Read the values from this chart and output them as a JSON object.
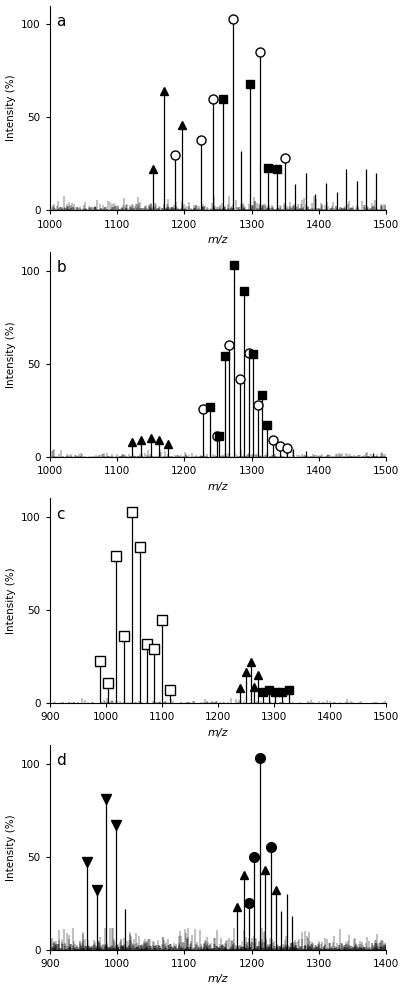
{
  "panels": [
    {
      "label": "a",
      "xlim": [
        1000,
        1500
      ],
      "ylim": [
        0,
        110
      ],
      "xticks": [
        1000,
        1100,
        1200,
        1300,
        1400,
        1500
      ],
      "peaks": [
        {
          "mz": 1154,
          "intensity": 22,
          "marker": "triangle_filled"
        },
        {
          "mz": 1170,
          "intensity": 64,
          "marker": "triangle_filled"
        },
        {
          "mz": 1186,
          "intensity": 30,
          "marker": "circle_open"
        },
        {
          "mz": 1196,
          "intensity": 46,
          "marker": "triangle_filled"
        },
        {
          "mz": 1224,
          "intensity": 38,
          "marker": "circle_open"
        },
        {
          "mz": 1242,
          "intensity": 60,
          "marker": "circle_open"
        },
        {
          "mz": 1258,
          "intensity": 60,
          "marker": "square_filled"
        },
        {
          "mz": 1272,
          "intensity": 103,
          "marker": "circle_open"
        },
        {
          "mz": 1284,
          "intensity": 32,
          "marker": null
        },
        {
          "mz": 1298,
          "intensity": 68,
          "marker": "square_filled"
        },
        {
          "mz": 1312,
          "intensity": 85,
          "marker": "circle_open"
        },
        {
          "mz": 1324,
          "intensity": 23,
          "marker": "square_filled"
        },
        {
          "mz": 1338,
          "intensity": 22,
          "marker": "square_filled"
        },
        {
          "mz": 1350,
          "intensity": 28,
          "marker": "circle_open"
        },
        {
          "mz": 1364,
          "intensity": 14,
          "marker": null
        },
        {
          "mz": 1380,
          "intensity": 20,
          "marker": null
        },
        {
          "mz": 1394,
          "intensity": 9,
          "marker": null
        },
        {
          "mz": 1410,
          "intensity": 15,
          "marker": null
        },
        {
          "mz": 1426,
          "intensity": 10,
          "marker": null
        },
        {
          "mz": 1440,
          "intensity": 22,
          "marker": null
        },
        {
          "mz": 1456,
          "intensity": 16,
          "marker": null
        },
        {
          "mz": 1470,
          "intensity": 22,
          "marker": null
        },
        {
          "mz": 1484,
          "intensity": 20,
          "marker": null
        }
      ],
      "noise_seed": 101,
      "noise_density": 600,
      "noise_max": 8,
      "noise_exp_scale": 1.5
    },
    {
      "label": "b",
      "xlim": [
        1000,
        1500
      ],
      "ylim": [
        0,
        110
      ],
      "xticks": [
        1000,
        1100,
        1200,
        1300,
        1400,
        1500
      ],
      "peaks": [
        {
          "mz": 1122,
          "intensity": 8,
          "marker": "triangle_filled"
        },
        {
          "mz": 1136,
          "intensity": 9,
          "marker": "triangle_filled"
        },
        {
          "mz": 1150,
          "intensity": 10,
          "marker": "triangle_filled"
        },
        {
          "mz": 1163,
          "intensity": 9,
          "marker": "triangle_filled"
        },
        {
          "mz": 1176,
          "intensity": 7,
          "marker": "triangle_filled"
        },
        {
          "mz": 1228,
          "intensity": 26,
          "marker": "circle_open"
        },
        {
          "mz": 1238,
          "intensity": 27,
          "marker": "square_filled"
        },
        {
          "mz": 1248,
          "intensity": 11,
          "marker": "circle_open"
        },
        {
          "mz": 1252,
          "intensity": 11,
          "marker": "square_filled"
        },
        {
          "mz": 1260,
          "intensity": 54,
          "marker": "square_filled"
        },
        {
          "mz": 1267,
          "intensity": 60,
          "marker": "circle_open"
        },
        {
          "mz": 1274,
          "intensity": 103,
          "marker": "square_filled"
        },
        {
          "mz": 1282,
          "intensity": 42,
          "marker": "circle_open"
        },
        {
          "mz": 1288,
          "intensity": 89,
          "marker": "square_filled"
        },
        {
          "mz": 1296,
          "intensity": 56,
          "marker": "circle_open"
        },
        {
          "mz": 1302,
          "intensity": 55,
          "marker": "square_filled"
        },
        {
          "mz": 1310,
          "intensity": 28,
          "marker": "circle_open"
        },
        {
          "mz": 1316,
          "intensity": 33,
          "marker": "square_filled"
        },
        {
          "mz": 1322,
          "intensity": 17,
          "marker": "square_filled"
        },
        {
          "mz": 1332,
          "intensity": 9,
          "marker": "circle_open"
        },
        {
          "mz": 1342,
          "intensity": 6,
          "marker": "circle_open"
        },
        {
          "mz": 1352,
          "intensity": 5,
          "marker": "circle_open"
        },
        {
          "mz": 1362,
          "intensity": 4,
          "marker": null
        },
        {
          "mz": 1380,
          "intensity": 3,
          "marker": null
        },
        {
          "mz": 1480,
          "intensity": 2,
          "marker": null
        }
      ],
      "noise_seed": 202,
      "noise_density": 300,
      "noise_max": 4,
      "noise_exp_scale": 0.8
    },
    {
      "label": "c",
      "xlim": [
        900,
        1500
      ],
      "ylim": [
        0,
        110
      ],
      "xticks": [
        900,
        1000,
        1100,
        1200,
        1300,
        1400,
        1500
      ],
      "peaks": [
        {
          "mz": 990,
          "intensity": 23,
          "marker": "square_open"
        },
        {
          "mz": 1004,
          "intensity": 11,
          "marker": "square_open"
        },
        {
          "mz": 1018,
          "intensity": 79,
          "marker": "square_open"
        },
        {
          "mz": 1032,
          "intensity": 36,
          "marker": "square_open"
        },
        {
          "mz": 1046,
          "intensity": 103,
          "marker": "square_open"
        },
        {
          "mz": 1060,
          "intensity": 84,
          "marker": "square_open"
        },
        {
          "mz": 1074,
          "intensity": 32,
          "marker": "square_open"
        },
        {
          "mz": 1086,
          "intensity": 29,
          "marker": "square_open"
        },
        {
          "mz": 1100,
          "intensity": 45,
          "marker": "square_open"
        },
        {
          "mz": 1114,
          "intensity": 7,
          "marker": "square_open"
        },
        {
          "mz": 1240,
          "intensity": 8,
          "marker": "triangle_filled"
        },
        {
          "mz": 1250,
          "intensity": 17,
          "marker": "triangle_filled"
        },
        {
          "mz": 1258,
          "intensity": 22,
          "marker": "triangle_filled"
        },
        {
          "mz": 1264,
          "intensity": 9,
          "marker": "triangle_filled"
        },
        {
          "mz": 1272,
          "intensity": 15,
          "marker": "triangle_filled"
        },
        {
          "mz": 1280,
          "intensity": 6,
          "marker": "square_filled"
        },
        {
          "mz": 1290,
          "intensity": 7,
          "marker": "square_filled"
        },
        {
          "mz": 1302,
          "intensity": 6,
          "marker": "square_filled"
        },
        {
          "mz": 1314,
          "intensity": 6,
          "marker": "square_filled"
        },
        {
          "mz": 1326,
          "intensity": 7,
          "marker": "square_filled"
        }
      ],
      "noise_seed": 303,
      "noise_density": 250,
      "noise_max": 3,
      "noise_exp_scale": 0.6
    },
    {
      "label": "d",
      "xlim": [
        900,
        1400
      ],
      "ylim": [
        0,
        110
      ],
      "xticks": [
        900,
        1000,
        1100,
        1200,
        1300,
        1400
      ],
      "peaks": [
        {
          "mz": 956,
          "intensity": 47,
          "marker": "triangle_down_filled"
        },
        {
          "mz": 970,
          "intensity": 32,
          "marker": "triangle_down_filled"
        },
        {
          "mz": 984,
          "intensity": 81,
          "marker": "triangle_down_filled"
        },
        {
          "mz": 998,
          "intensity": 67,
          "marker": "triangle_down_filled"
        },
        {
          "mz": 1012,
          "intensity": 22,
          "marker": null
        },
        {
          "mz": 1178,
          "intensity": 23,
          "marker": "triangle_filled"
        },
        {
          "mz": 1188,
          "intensity": 40,
          "marker": "triangle_filled"
        },
        {
          "mz": 1196,
          "intensity": 25,
          "marker": "circle_filled"
        },
        {
          "mz": 1204,
          "intensity": 50,
          "marker": "circle_filled"
        },
        {
          "mz": 1212,
          "intensity": 103,
          "marker": "circle_filled"
        },
        {
          "mz": 1220,
          "intensity": 43,
          "marker": "triangle_filled"
        },
        {
          "mz": 1228,
          "intensity": 55,
          "marker": "circle_filled"
        },
        {
          "mz": 1236,
          "intensity": 32,
          "marker": "triangle_filled"
        },
        {
          "mz": 1244,
          "intensity": 21,
          "marker": null
        },
        {
          "mz": 1252,
          "intensity": 30,
          "marker": null
        },
        {
          "mz": 1260,
          "intensity": 18,
          "marker": null
        }
      ],
      "noise_seed": 404,
      "noise_density": 800,
      "noise_max": 12,
      "noise_exp_scale": 2.5
    }
  ]
}
